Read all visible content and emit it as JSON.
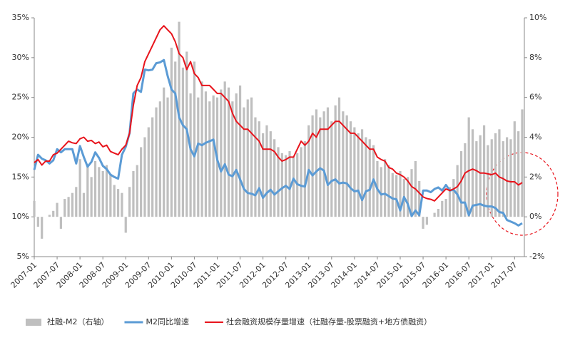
{
  "chart_data": {
    "type": "combo",
    "categories": [
      "2007-01",
      null,
      null,
      null,
      null,
      null,
      "2007-07",
      null,
      null,
      null,
      null,
      null,
      "2008-01",
      null,
      null,
      null,
      null,
      null,
      "2008-07",
      null,
      null,
      null,
      null,
      null,
      "2009-01",
      null,
      null,
      null,
      null,
      null,
      "2009-07",
      null,
      null,
      null,
      null,
      null,
      "2010-01",
      null,
      null,
      null,
      null,
      null,
      "2010-07",
      null,
      null,
      null,
      null,
      null,
      "2011-01",
      null,
      null,
      null,
      null,
      null,
      "2011-07",
      null,
      null,
      null,
      null,
      null,
      "2012-01",
      null,
      null,
      null,
      null,
      null,
      "2012-07",
      null,
      null,
      null,
      null,
      null,
      "2013-01",
      null,
      null,
      null,
      null,
      null,
      "2013-07",
      null,
      null,
      null,
      null,
      null,
      "2014-01",
      null,
      null,
      null,
      null,
      null,
      "2014-07",
      null,
      null,
      null,
      null,
      null,
      "2015-01",
      null,
      null,
      null,
      null,
      null,
      "2015-07",
      null,
      null,
      null,
      null,
      null,
      "2016-01",
      null,
      null,
      null,
      null,
      null,
      "2016-07",
      null,
      null,
      null,
      null,
      null,
      "2017-01",
      null,
      null,
      null,
      null,
      null,
      "2017-07",
      null,
      null
    ],
    "series": [
      {
        "name": "社融-M2（右轴）",
        "type": "bar",
        "axis": "y2",
        "color": "#bfbfbf",
        "values": [
          0.8,
          -0.5,
          -1.1,
          0.0,
          0.1,
          0.3,
          0.7,
          -0.6,
          0.9,
          1.0,
          1.2,
          1.5,
          2.9,
          1.2,
          2.6,
          2.0,
          2.8,
          2.5,
          2.3,
          2.6,
          2.1,
          1.6,
          1.4,
          1.2,
          -0.8,
          1.5,
          2.3,
          2.6,
          3.5,
          4.0,
          4.5,
          5.0,
          5.5,
          5.8,
          6.5,
          6.0,
          8.5,
          7.8,
          9.8,
          7.5,
          8.3,
          6.2,
          7.8,
          6.0,
          6.8,
          6.3,
          5.8,
          6.1,
          6.0,
          6.4,
          6.8,
          6.5,
          5.8,
          6.2,
          6.6,
          5.5,
          5.9,
          6.0,
          5.0,
          4.8,
          4.2,
          4.6,
          4.3,
          3.9,
          3.5,
          3.2,
          3.1,
          3.3,
          3.0,
          3.2,
          3.5,
          3.8,
          4.6,
          5.1,
          5.4,
          5.0,
          5.3,
          5.5,
          4.8,
          5.6,
          6.0,
          5.3,
          5.1,
          4.8,
          4.5,
          4.2,
          4.4,
          4.0,
          3.9,
          3.6,
          2.8,
          2.5,
          2.9,
          2.6,
          2.2,
          2.1,
          2.3,
          1.9,
          2.0,
          2.4,
          2.8,
          1.8,
          -0.6,
          -0.4,
          0.0,
          0.2,
          0.4,
          0.8,
          0.9,
          1.5,
          1.9,
          2.6,
          3.3,
          3.7,
          5.0,
          4.4,
          3.8,
          4.1,
          4.6,
          3.6,
          3.9,
          4.2,
          4.4,
          3.8,
          4.0,
          3.9,
          4.8,
          4.3,
          5.4
        ]
      },
      {
        "name": "M2同比增速",
        "type": "line",
        "color": "#5b9bd5",
        "values": [
          15.9,
          17.8,
          17.3,
          17.1,
          16.7,
          17.1,
          18.5,
          18.1,
          18.5,
          18.5,
          18.5,
          16.7,
          18.9,
          17.5,
          16.3,
          16.9,
          18.1,
          17.4,
          16.4,
          16.0,
          15.3,
          15.0,
          14.8,
          17.8,
          18.8,
          20.5,
          25.5,
          26.0,
          25.7,
          28.5,
          28.4,
          28.5,
          29.3,
          29.4,
          29.7,
          27.7,
          26.0,
          25.5,
          22.5,
          21.5,
          21.0,
          18.5,
          17.6,
          19.2,
          19.0,
          19.3,
          19.5,
          19.7,
          17.2,
          15.7,
          16.6,
          15.3,
          15.1,
          15.9,
          14.7,
          13.5,
          13.0,
          12.9,
          12.7,
          13.6,
          12.4,
          13.0,
          13.4,
          12.8,
          13.2,
          13.6,
          13.9,
          13.5,
          14.8,
          14.1,
          13.9,
          13.8,
          15.9,
          15.2,
          15.7,
          16.1,
          15.8,
          14.0,
          14.5,
          14.7,
          14.2,
          14.3,
          14.2,
          13.6,
          13.2,
          13.3,
          12.1,
          13.2,
          13.4,
          14.7,
          13.5,
          12.8,
          12.9,
          12.6,
          12.3,
          12.2,
          10.8,
          12.5,
          11.6,
          10.1,
          10.8,
          10.2,
          13.3,
          13.3,
          13.1,
          13.5,
          13.7,
          13.3,
          14.0,
          13.3,
          13.4,
          12.8,
          11.8,
          11.8,
          10.2,
          11.4,
          11.5,
          11.6,
          11.4,
          11.3,
          11.3,
          11.1,
          10.6,
          10.5,
          9.6,
          9.4,
          9.2,
          8.9,
          9.2
        ]
      },
      {
        "name": "社会融资规模存量增速（社融存量-股票融资+地方债融资）",
        "type": "line",
        "color": "#e8141c",
        "values": [
          16.8,
          17.2,
          16.5,
          17.0,
          17.0,
          17.8,
          18.0,
          18.5,
          19.0,
          19.5,
          19.3,
          19.2,
          19.8,
          20.0,
          19.5,
          19.6,
          19.2,
          19.4,
          18.8,
          19.0,
          18.2,
          18.0,
          17.8,
          18.5,
          19.0,
          20.5,
          24.0,
          26.5,
          27.5,
          29.5,
          30.5,
          31.5,
          32.5,
          33.5,
          34.0,
          33.5,
          33.0,
          32.0,
          30.5,
          30.0,
          28.5,
          29.5,
          28.0,
          27.5,
          26.5,
          26.5,
          26.5,
          26.0,
          25.5,
          25.5,
          25.0,
          24.5,
          23.0,
          22.0,
          21.5,
          21.0,
          21.0,
          20.5,
          20.0,
          19.5,
          18.5,
          18.5,
          18.5,
          18.2,
          17.5,
          17.0,
          17.2,
          17.5,
          17.5,
          18.5,
          19.5,
          19.0,
          19.5,
          20.5,
          20.0,
          21.0,
          21.0,
          21.0,
          21.5,
          22.0,
          22.0,
          21.5,
          21.0,
          20.5,
          20.5,
          20.0,
          19.5,
          19.0,
          18.5,
          18.5,
          17.5,
          17.2,
          17.0,
          16.2,
          16.0,
          15.5,
          15.3,
          15.0,
          14.5,
          13.8,
          13.5,
          13.0,
          12.5,
          12.3,
          12.2,
          12.0,
          12.5,
          13.0,
          13.5,
          13.3,
          13.5,
          13.8,
          14.5,
          15.5,
          15.8,
          16.0,
          15.8,
          15.5,
          15.5,
          15.4,
          15.3,
          15.5,
          15.0,
          14.8,
          14.5,
          14.4,
          14.4,
          14.0,
          14.3
        ]
      }
    ],
    "ylim": [
      5,
      35
    ],
    "yticks": [
      {
        "value": 5,
        "label": "5%"
      },
      {
        "value": 10,
        "label": "10%"
      },
      {
        "value": 15,
        "label": "15%"
      },
      {
        "value": 20,
        "label": "20%"
      },
      {
        "value": 25,
        "label": "25%"
      },
      {
        "value": 30,
        "label": "30%"
      },
      {
        "value": 35,
        "label": "35%"
      }
    ],
    "y2lim": [
      -2,
      10
    ],
    "y2ticks": [
      {
        "value": -2,
        "label": "-2%"
      },
      {
        "value": 0,
        "label": "0%"
      },
      {
        "value": 2,
        "label": "2%"
      },
      {
        "value": 4,
        "label": "4%"
      },
      {
        "value": 6,
        "label": "6%"
      },
      {
        "value": 8,
        "label": "8%"
      },
      {
        "value": 10,
        "label": "10%"
      }
    ],
    "grid": false,
    "legend": "bottom"
  }
}
